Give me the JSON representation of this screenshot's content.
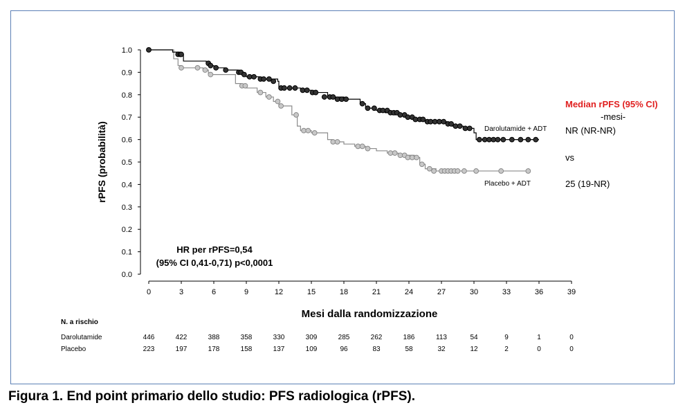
{
  "caption": "Figura 1. End point primario dello studio: PFS radiologica (rPFS).",
  "chart_data": {
    "type": "line",
    "chart_subtype": "kaplan-meier",
    "xlabel": "Mesi dalla randomizzazione",
    "ylabel": "rPFS (probabilità)",
    "xlim": [
      0,
      39
    ],
    "ylim": [
      0,
      1
    ],
    "x_ticks": [
      "0",
      "3",
      "6",
      "9",
      "12",
      "15",
      "18",
      "21",
      "24",
      "27",
      "30",
      "33",
      "36",
      "39"
    ],
    "y_ticks": [
      "0.0",
      "0.1",
      "0.2",
      "0.3",
      "0.4",
      "0.5",
      "0.6",
      "0.7",
      "0.8",
      "0.9",
      "1.0"
    ],
    "grid": false,
    "series": [
      {
        "name": "Darolutamide + ADT",
        "color": "#000000",
        "marker_fill": "#333333",
        "x": [
          0,
          2.2,
          2.8,
          3.2,
          5.3,
          5.6,
          6.0,
          7.0,
          8.2,
          8.6,
          9.0,
          9.5,
          10.2,
          11.0,
          11.9,
          12.0,
          14.0,
          15.0,
          16.5,
          18.0,
          19.5,
          20.0,
          21.0,
          21.8,
          22.5,
          23.5,
          24.5,
          25.5,
          27.0,
          27.5,
          28.0,
          29.0,
          30.0,
          30.2,
          31.0,
          36.0
        ],
        "y": [
          1.0,
          0.99,
          0.98,
          0.95,
          0.94,
          0.93,
          0.92,
          0.91,
          0.9,
          0.89,
          0.88,
          0.88,
          0.87,
          0.87,
          0.86,
          0.83,
          0.82,
          0.81,
          0.79,
          0.78,
          0.76,
          0.74,
          0.73,
          0.72,
          0.71,
          0.7,
          0.69,
          0.68,
          0.68,
          0.67,
          0.66,
          0.65,
          0.63,
          0.6,
          0.6,
          0.6
        ],
        "censor_x": [
          0,
          2.7,
          2.9,
          3.0,
          5.5,
          5.7,
          6.2,
          7.1,
          8.3,
          8.5,
          8.8,
          9.3,
          9.7,
          10.3,
          10.6,
          11.1,
          11.5,
          12.2,
          12.5,
          13.0,
          13.5,
          14.2,
          14.6,
          15.1,
          15.4,
          16.2,
          16.7,
          17.0,
          17.4,
          17.8,
          18.2,
          19.7,
          20.2,
          20.8,
          21.3,
          21.6,
          22.0,
          22.3,
          22.6,
          22.9,
          23.2,
          23.6,
          23.9,
          24.3,
          24.6,
          25.0,
          25.3,
          25.7,
          26.0,
          26.4,
          26.8,
          27.2,
          27.6,
          27.9,
          28.3,
          28.7,
          29.2,
          29.6,
          30.5,
          31.0,
          31.4,
          31.8,
          32.2,
          32.7,
          33.5,
          34.3,
          35.0,
          35.7
        ],
        "censor_y": [
          1.0,
          0.98,
          0.98,
          0.98,
          0.94,
          0.93,
          0.92,
          0.91,
          0.9,
          0.9,
          0.89,
          0.88,
          0.88,
          0.87,
          0.87,
          0.87,
          0.86,
          0.83,
          0.83,
          0.83,
          0.83,
          0.82,
          0.82,
          0.81,
          0.81,
          0.79,
          0.79,
          0.79,
          0.78,
          0.78,
          0.78,
          0.76,
          0.74,
          0.74,
          0.73,
          0.73,
          0.73,
          0.72,
          0.72,
          0.72,
          0.71,
          0.71,
          0.7,
          0.7,
          0.69,
          0.69,
          0.69,
          0.68,
          0.68,
          0.68,
          0.68,
          0.68,
          0.67,
          0.67,
          0.66,
          0.66,
          0.65,
          0.65,
          0.6,
          0.6,
          0.6,
          0.6,
          0.6,
          0.6,
          0.6,
          0.6,
          0.6,
          0.6
        ]
      },
      {
        "name": "Placebo + ADT",
        "color": "#8a8a8a",
        "marker_fill": "#c8c8c8",
        "x": [
          0,
          2.3,
          2.7,
          3.0,
          5.0,
          5.5,
          8.0,
          8.5,
          9.0,
          10.0,
          10.8,
          11.5,
          12.0,
          13.2,
          13.7,
          14.0,
          15.0,
          16.5,
          17.0,
          18.0,
          19.0,
          20.0,
          21.0,
          22.0,
          23.0,
          24.5,
          25.0,
          25.5,
          26.5,
          35.0
        ],
        "y": [
          1.0,
          0.96,
          0.93,
          0.92,
          0.91,
          0.89,
          0.85,
          0.84,
          0.83,
          0.81,
          0.79,
          0.77,
          0.75,
          0.71,
          0.66,
          0.64,
          0.63,
          0.6,
          0.59,
          0.58,
          0.57,
          0.56,
          0.55,
          0.54,
          0.53,
          0.52,
          0.49,
          0.47,
          0.46,
          0.46
        ],
        "censor_x": [
          0,
          3.0,
          4.5,
          5.2,
          5.7,
          8.6,
          8.9,
          10.3,
          11.1,
          11.9,
          12.2,
          13.6,
          14.3,
          14.7,
          15.3,
          17.0,
          17.4,
          19.3,
          19.7,
          20.2,
          22.3,
          22.7,
          23.2,
          23.6,
          23.9,
          24.3,
          24.7,
          25.2,
          25.9,
          26.3,
          27.0,
          27.3,
          27.6,
          27.9,
          28.2,
          28.5,
          29.1,
          30.2,
          32.5,
          35.0
        ],
        "censor_y": [
          1.0,
          0.92,
          0.92,
          0.91,
          0.89,
          0.84,
          0.84,
          0.81,
          0.79,
          0.77,
          0.75,
          0.71,
          0.64,
          0.64,
          0.63,
          0.59,
          0.59,
          0.57,
          0.57,
          0.56,
          0.54,
          0.54,
          0.53,
          0.53,
          0.52,
          0.52,
          0.52,
          0.49,
          0.47,
          0.46,
          0.46,
          0.46,
          0.46,
          0.46,
          0.46,
          0.46,
          0.46,
          0.46,
          0.46,
          0.46
        ]
      }
    ],
    "annotations": {
      "hr_line1": "HR per rPFS=0,54",
      "hr_line2": "(95% CI 0,41-0,71) p<0,0001",
      "median_title": "Median rPFS (95% CI)",
      "median_unit": "-mesi-",
      "median_daro": "NR (NR-NR)",
      "median_vs": "vs",
      "median_placebo": "25 (19-NR)"
    },
    "risk_table": {
      "title": "N. a rischio",
      "rows": [
        {
          "label": "Darolutamide",
          "values": [
            "446",
            "422",
            "388",
            "358",
            "330",
            "309",
            "285",
            "262",
            "186",
            "113",
            "54",
            "9",
            "1",
            "0"
          ]
        },
        {
          "label": "Placebo",
          "values": [
            "223",
            "197",
            "178",
            "158",
            "137",
            "109",
            "96",
            "83",
            "58",
            "32",
            "12",
            "2",
            "0",
            "0"
          ]
        }
      ]
    }
  }
}
